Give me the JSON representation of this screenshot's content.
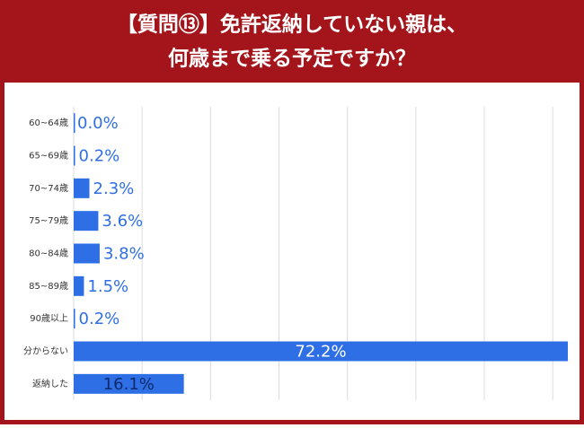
{
  "chart_data": {
    "type": "bar",
    "orientation": "horizontal",
    "title_lines": [
      "【質問⑬】免許返納していない親は、",
      "何歳まで乗る予定ですか？"
    ],
    "categories": [
      "60~64歳",
      "65~69歳",
      "70~74歳",
      "75~79歳",
      "80~84歳",
      "85~89歳",
      "90歳以上",
      "分からない",
      "返納した"
    ],
    "values": [
      0.0,
      0.2,
      2.3,
      3.6,
      3.8,
      1.5,
      0.2,
      72.2,
      16.1
    ],
    "value_labels": [
      "0.0%",
      "0.2%",
      "2.3%",
      "3.6%",
      "3.8%",
      "1.5%",
      "0.2%",
      "72.2%",
      "16.1%"
    ],
    "color": "#2e6fe6",
    "xlim": [
      0,
      72.2
    ],
    "xticks": [
      0,
      10,
      20,
      30,
      40,
      50,
      60,
      70
    ],
    "grid": true
  }
}
